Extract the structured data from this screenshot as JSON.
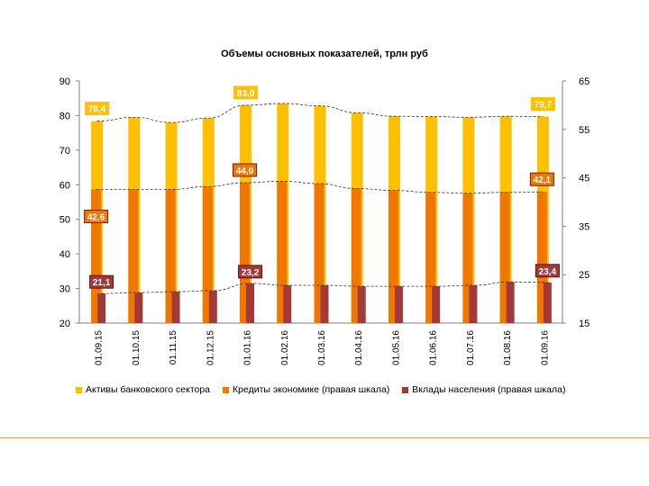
{
  "chart_data": {
    "type": "bar",
    "title": "Объемы основных показателей, трлн руб",
    "categories": [
      "01.09.15",
      "01.10.15",
      "01.11.15",
      "01.12.15",
      "01.01.16",
      "01.02.16",
      "01.03.16",
      "01.04.16",
      "01.05.16",
      "01.06.16",
      "01.07.16",
      "01.08.16",
      "01.09.16"
    ],
    "left_axis": {
      "min": 20,
      "max": 90,
      "ticks": [
        20,
        30,
        40,
        50,
        60,
        70,
        80,
        90
      ]
    },
    "right_axis": {
      "min": 15,
      "max": 65,
      "ticks": [
        15,
        25,
        35,
        45,
        55,
        65
      ]
    },
    "series": [
      {
        "name": "Активы банковского сектора",
        "axis": "left",
        "color": "#FFC000",
        "values": [
          78.4,
          79.5,
          78.0,
          79.3,
          83.0,
          83.5,
          82.8,
          80.8,
          79.8,
          79.7,
          79.5,
          79.8,
          79.7
        ]
      },
      {
        "name": "Кредиты экономике (правая шкала)",
        "axis": "right",
        "color": "#F07800",
        "values": [
          42.6,
          42.6,
          42.6,
          43.2,
          44.0,
          44.3,
          43.8,
          42.8,
          42.4,
          42.0,
          41.8,
          42.0,
          42.1
        ]
      },
      {
        "name": "Вклады населения (правая шкала)",
        "axis": "right",
        "color": "#A23A3A",
        "values": [
          21.1,
          21.3,
          21.5,
          21.7,
          23.2,
          22.8,
          22.8,
          22.6,
          22.6,
          22.6,
          22.8,
          23.5,
          23.4
        ]
      }
    ],
    "data_labels": [
      {
        "series": 0,
        "index": 0,
        "text": "78,4"
      },
      {
        "series": 0,
        "index": 4,
        "text": "83,0"
      },
      {
        "series": 0,
        "index": 12,
        "text": "79,7"
      },
      {
        "series": 1,
        "index": 0,
        "text": "42,6"
      },
      {
        "series": 1,
        "index": 4,
        "text": "44,0"
      },
      {
        "series": 1,
        "index": 12,
        "text": "42,1"
      },
      {
        "series": 2,
        "index": 0,
        "text": "21,1"
      },
      {
        "series": 2,
        "index": 4,
        "text": "23,2"
      },
      {
        "series": 2,
        "index": 12,
        "text": "23,4"
      }
    ],
    "trendlines": "dashed",
    "legend_position": "bottom",
    "grid": false
  }
}
